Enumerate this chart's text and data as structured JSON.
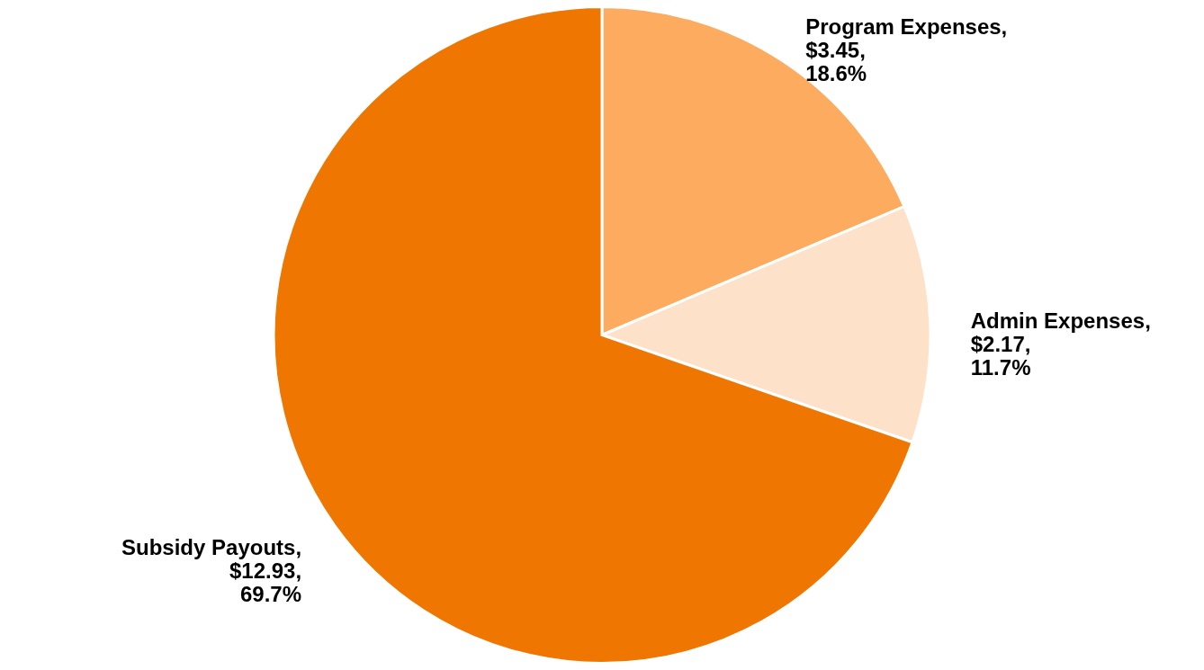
{
  "chart_data": {
    "type": "pie",
    "categories": [
      "Program Expenses",
      "Admin Expenses",
      "Subsidy Payouts"
    ],
    "values": [
      3.45,
      2.17,
      12.93
    ],
    "value_labels": [
      ", $3.45, 18.6%",
      ", $2.17, 11.7%",
      ", $12.93, 69.7%"
    ],
    "colors": [
      "#fdab5f",
      "#fde1c8",
      "#ef7600"
    ]
  }
}
